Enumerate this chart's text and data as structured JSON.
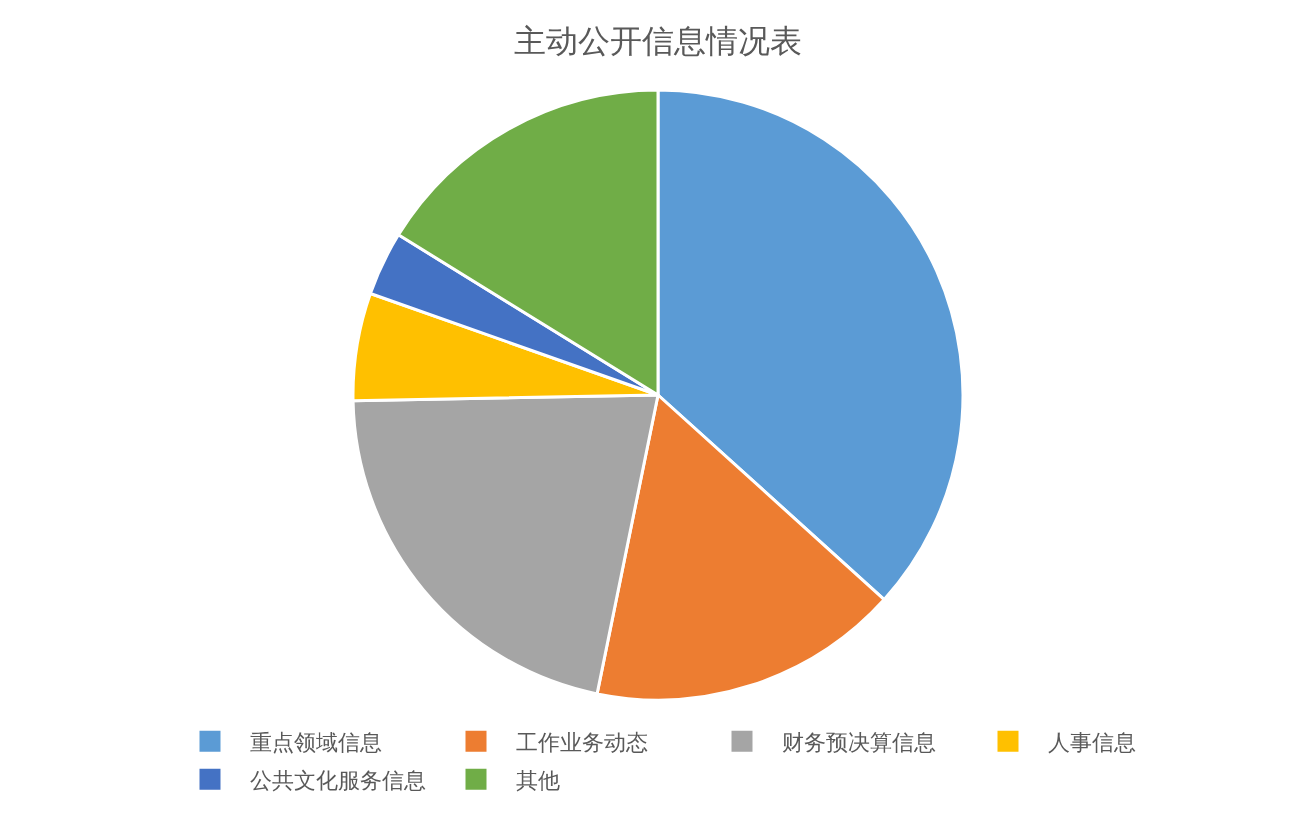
{
  "chart_data": {
    "type": "pie",
    "title": "主动公开信息情况表",
    "categories": [
      "重点领域信息",
      "工作业务动态",
      "财务预决算信息",
      "人事信息",
      "公共文化服务信息",
      "其他"
    ],
    "values": [
      36.7,
      16.5,
      21.5,
      5.7,
      3.4,
      16.2
    ],
    "colors": [
      "#5b9bd5",
      "#ed7d31",
      "#a5a5a5",
      "#ffc000",
      "#4472c4",
      "#70ad47"
    ],
    "legend": "bottom"
  }
}
